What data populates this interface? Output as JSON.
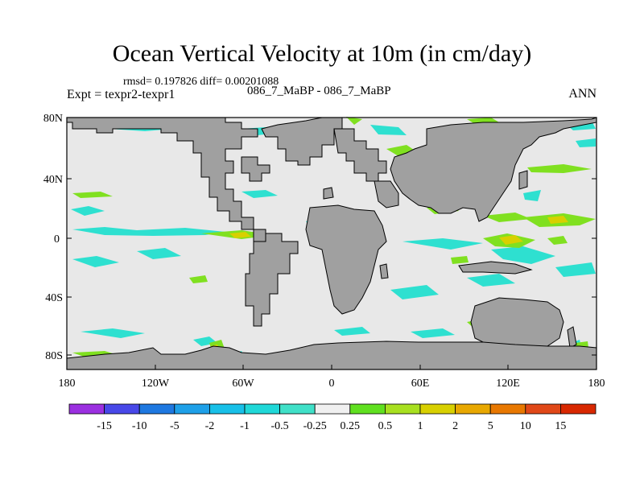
{
  "title": "Ocean Vertical Velocity at 10m (in cm/day)",
  "stats": "rmsd= 0.197826 diff= 0.00201088",
  "expt": "Expt = texpr2-texpr1",
  "case": "086_7_MaBP - 086_7_MaBP",
  "season": "ANN",
  "map": {
    "lat_ticks": [
      "80N",
      "40N",
      "0",
      "40S",
      "80S"
    ],
    "lon_ticks": [
      "180",
      "120W",
      "60W",
      "0",
      "60E",
      "120E",
      "180"
    ],
    "land_color": "#a0a0a0",
    "ocean_color": "#e8e8e8"
  },
  "colorbar": {
    "labels": [
      "-15",
      "-10",
      "-5",
      "-2",
      "-1",
      "-0.5",
      "-0.25",
      "0.25",
      "0.5",
      "1",
      "2",
      "5",
      "10",
      "15"
    ],
    "colors": [
      "#9b30e0",
      "#4848e8",
      "#1e78e0",
      "#1ea0e8",
      "#18c0e8",
      "#20d8d8",
      "#40e0c8",
      "#f0f0f0",
      "#60e020",
      "#a8e020",
      "#d8d000",
      "#e8a800",
      "#e87800",
      "#e04818",
      "#d82800"
    ]
  }
}
